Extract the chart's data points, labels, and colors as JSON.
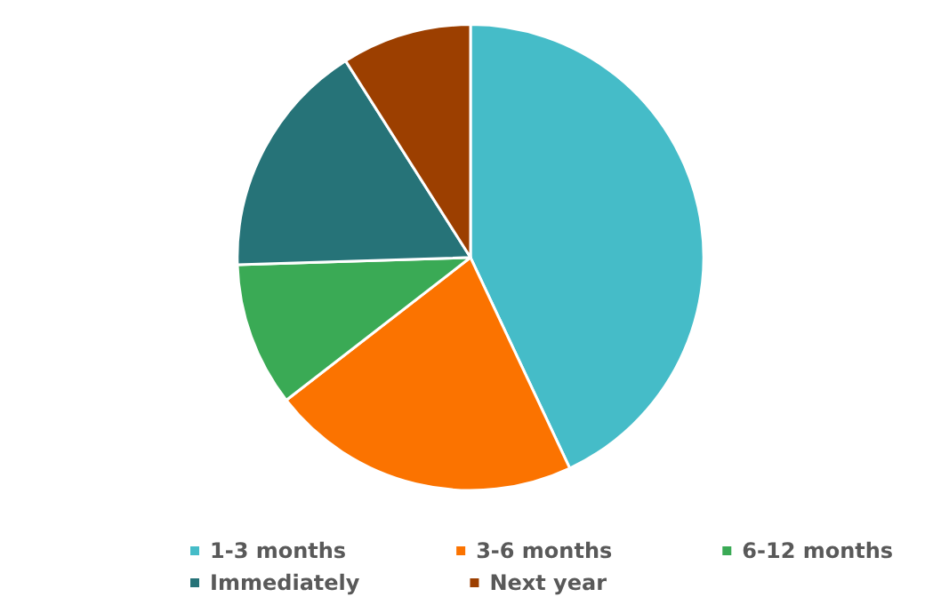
{
  "chart_data": {
    "type": "pie",
    "categories": [
      "1-3 months",
      "3-6 months",
      "6-12 months",
      "Immediately",
      "Next year"
    ],
    "values": [
      43,
      21.5,
      10,
      16.5,
      9
    ],
    "colors": [
      "#45bcc8",
      "#fb7300",
      "#3aaa55",
      "#267378",
      "#9c3f00"
    ],
    "legend": "bottom"
  }
}
